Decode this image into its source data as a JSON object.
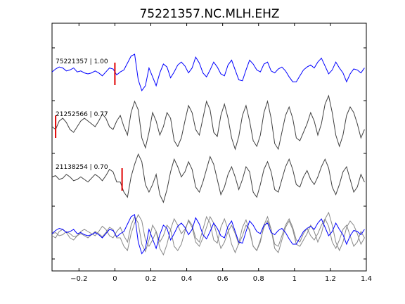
{
  "chart_data": {
    "type": "line",
    "title": "75221357.NC.MLH.EHZ",
    "xlabel": "",
    "ylabel": "",
    "xlim": [
      -0.35,
      1.4
    ],
    "grid": false,
    "xticks": [
      -0.2,
      0,
      0.2,
      0.4,
      0.6,
      0.8,
      1,
      1.2,
      1.4
    ],
    "xtick_labels": [
      "−0.2",
      "0",
      "0.2",
      "0.4",
      "0.6",
      "0.8",
      "1",
      "1.2",
      "1.4"
    ],
    "colors": {
      "blue": "#0000ff",
      "dark": "#404040",
      "gray": "#888888",
      "pick": "#e00000"
    },
    "series": [
      {
        "label": "75221357 | 1.00",
        "color": "blue",
        "pick_time": 0.0,
        "x": [
          -0.35,
          -0.33,
          -0.31,
          -0.29,
          -0.27,
          -0.25,
          -0.23,
          -0.21,
          -0.19,
          -0.17,
          -0.15,
          -0.13,
          -0.11,
          -0.09,
          -0.07,
          -0.05,
          -0.03,
          -0.01,
          0.01,
          0.03,
          0.05,
          0.07,
          0.09,
          0.11,
          0.13,
          0.15,
          0.17,
          0.19,
          0.21,
          0.23,
          0.25,
          0.27,
          0.29,
          0.31,
          0.33,
          0.35,
          0.37,
          0.39,
          0.41,
          0.43,
          0.45,
          0.47,
          0.49,
          0.51,
          0.53,
          0.55,
          0.57,
          0.59,
          0.61,
          0.63,
          0.65,
          0.67,
          0.69,
          0.71,
          0.73,
          0.75,
          0.77,
          0.79,
          0.81,
          0.83,
          0.85,
          0.87,
          0.89,
          0.91,
          0.93,
          0.95,
          0.97,
          0.99,
          1.01,
          1.03,
          1.05,
          1.07,
          1.09,
          1.11,
          1.13,
          1.15,
          1.17,
          1.19,
          1.21,
          1.23,
          1.25,
          1.27,
          1.29,
          1.31,
          1.33,
          1.35,
          1.37,
          1.39
        ],
        "y": [
          0.1,
          0.25,
          0.35,
          0.3,
          0.15,
          0.2,
          0.3,
          0.1,
          0.15,
          0.05,
          0.0,
          0.05,
          0.15,
          0.05,
          -0.1,
          0.1,
          0.3,
          0.25,
          -0.05,
          0.1,
          0.2,
          0.55,
          0.9,
          1.0,
          -0.3,
          -0.85,
          -0.6,
          0.3,
          -0.15,
          -0.6,
          0.05,
          0.5,
          0.35,
          -0.2,
          0.1,
          0.45,
          0.6,
          0.4,
          0.05,
          0.3,
          0.85,
          0.55,
          0.05,
          -0.15,
          0.2,
          0.6,
          0.35,
          0.0,
          -0.1,
          0.45,
          0.7,
          0.2,
          -0.3,
          -0.35,
          0.2,
          0.7,
          0.5,
          0.2,
          0.1,
          0.5,
          0.6,
          0.15,
          0.05,
          0.25,
          0.35,
          0.15,
          -0.15,
          -0.4,
          -0.4,
          -0.1,
          0.2,
          0.35,
          0.45,
          0.3,
          0.6,
          0.8,
          0.4,
          0.0,
          0.2,
          0.6,
          0.3,
          0.05,
          -0.4,
          0.0,
          0.25,
          0.2,
          0.05,
          0.3
        ]
      },
      {
        "label": "21252566 | 0.77",
        "color": "dark",
        "pick_time": -0.33,
        "x": [
          -0.35,
          -0.33,
          -0.31,
          -0.29,
          -0.27,
          -0.25,
          -0.23,
          -0.21,
          -0.19,
          -0.17,
          -0.15,
          -0.13,
          -0.11,
          -0.09,
          -0.07,
          -0.05,
          -0.03,
          -0.01,
          0.01,
          0.03,
          0.05,
          0.07,
          0.09,
          0.11,
          0.13,
          0.15,
          0.17,
          0.19,
          0.21,
          0.23,
          0.25,
          0.27,
          0.29,
          0.31,
          0.33,
          0.35,
          0.37,
          0.39,
          0.41,
          0.43,
          0.45,
          0.47,
          0.49,
          0.51,
          0.53,
          0.55,
          0.57,
          0.59,
          0.61,
          0.63,
          0.65,
          0.67,
          0.69,
          0.71,
          0.73,
          0.75,
          0.77,
          0.79,
          0.81,
          0.83,
          0.85,
          0.87,
          0.89,
          0.91,
          0.93,
          0.95,
          0.97,
          0.99,
          1.01,
          1.03,
          1.05,
          1.07,
          1.09,
          1.11,
          1.13,
          1.15,
          1.17,
          1.19,
          1.21,
          1.23,
          1.25,
          1.27,
          1.29,
          1.31,
          1.33,
          1.35,
          1.37,
          1.39
        ],
        "y": [
          0.0,
          -0.1,
          0.2,
          0.3,
          0.15,
          -0.1,
          -0.2,
          0.0,
          0.2,
          0.3,
          0.2,
          0.1,
          0.0,
          0.2,
          0.45,
          0.3,
          0.0,
          -0.1,
          0.2,
          0.4,
          0.0,
          -0.3,
          0.5,
          0.9,
          0.6,
          -0.4,
          -0.75,
          -0.2,
          0.5,
          0.2,
          -0.3,
          0.0,
          0.5,
          0.3,
          -0.5,
          -0.7,
          -0.4,
          0.2,
          0.75,
          0.5,
          -0.1,
          -0.3,
          0.3,
          0.9,
          0.6,
          -0.2,
          -0.35,
          0.4,
          0.8,
          0.3,
          -0.4,
          -0.8,
          -0.35,
          0.4,
          0.75,
          0.2,
          -0.5,
          -0.7,
          -0.3,
          0.5,
          0.9,
          0.3,
          -0.6,
          -0.8,
          -0.2,
          0.4,
          0.7,
          0.3,
          -0.4,
          -0.5,
          -0.2,
          0.1,
          0.5,
          0.2,
          -0.3,
          0.1,
          0.8,
          1.1,
          0.5,
          -0.3,
          -0.7,
          -0.3,
          0.4,
          0.7,
          0.5,
          0.1,
          -0.4,
          -0.1
        ]
      },
      {
        "label": "21138254 | 0.70",
        "color": "dark",
        "pick_time": 0.04,
        "x": [
          -0.35,
          -0.33,
          -0.31,
          -0.29,
          -0.27,
          -0.25,
          -0.23,
          -0.21,
          -0.19,
          -0.17,
          -0.15,
          -0.13,
          -0.11,
          -0.09,
          -0.07,
          -0.05,
          -0.03,
          -0.01,
          0.01,
          0.03,
          0.05,
          0.07,
          0.09,
          0.11,
          0.13,
          0.15,
          0.17,
          0.19,
          0.21,
          0.23,
          0.25,
          0.27,
          0.29,
          0.31,
          0.33,
          0.35,
          0.37,
          0.39,
          0.41,
          0.43,
          0.45,
          0.47,
          0.49,
          0.51,
          0.53,
          0.55,
          0.57,
          0.59,
          0.61,
          0.63,
          0.65,
          0.67,
          0.69,
          0.71,
          0.73,
          0.75,
          0.77,
          0.79,
          0.81,
          0.83,
          0.85,
          0.87,
          0.89,
          0.91,
          0.93,
          0.95,
          0.97,
          0.99,
          1.01,
          1.03,
          1.05,
          1.07,
          1.09,
          1.11,
          1.13,
          1.15,
          1.17,
          1.19,
          1.21,
          1.23,
          1.25,
          1.27,
          1.29,
          1.31,
          1.33,
          1.35,
          1.37,
          1.39
        ],
        "y": [
          0.1,
          0.15,
          0.0,
          0.05,
          0.2,
          0.1,
          -0.05,
          0.0,
          0.1,
          0.0,
          -0.1,
          0.05,
          0.2,
          0.1,
          -0.05,
          0.15,
          0.4,
          0.3,
          -0.1,
          -0.1,
          -0.5,
          -0.7,
          0.1,
          0.6,
          1.0,
          0.7,
          -0.2,
          -0.5,
          -0.2,
          0.2,
          -0.6,
          -0.9,
          -0.4,
          0.3,
          0.8,
          0.5,
          0.1,
          0.3,
          0.7,
          0.4,
          -0.3,
          -0.5,
          -0.1,
          0.4,
          0.9,
          0.6,
          0.0,
          -0.6,
          -0.3,
          0.2,
          0.5,
          0.1,
          -0.4,
          0.0,
          0.5,
          0.3,
          -0.5,
          -0.7,
          -0.2,
          0.4,
          0.7,
          0.3,
          -0.4,
          -0.5,
          0.0,
          0.5,
          0.8,
          0.4,
          -0.2,
          -0.3,
          0.1,
          0.35,
          0.0,
          -0.2,
          0.1,
          0.5,
          0.8,
          0.45,
          -0.3,
          -0.6,
          -0.2,
          0.3,
          0.5,
          0.0,
          -0.5,
          -0.3,
          0.2,
          -0.1
        ]
      }
    ],
    "overlay": {
      "series": [
        {
          "color": "blue",
          "x": [
            -0.35,
            -0.33,
            -0.31,
            -0.29,
            -0.27,
            -0.25,
            -0.23,
            -0.21,
            -0.19,
            -0.17,
            -0.15,
            -0.13,
            -0.11,
            -0.09,
            -0.07,
            -0.05,
            -0.03,
            -0.01,
            0.01,
            0.03,
            0.05,
            0.07,
            0.09,
            0.11,
            0.13,
            0.15,
            0.17,
            0.19,
            0.21,
            0.23,
            0.25,
            0.27,
            0.29,
            0.31,
            0.33,
            0.35,
            0.37,
            0.39,
            0.41,
            0.43,
            0.45,
            0.47,
            0.49,
            0.51,
            0.53,
            0.55,
            0.57,
            0.59,
            0.61,
            0.63,
            0.65,
            0.67,
            0.69,
            0.71,
            0.73,
            0.75,
            0.77,
            0.79,
            0.81,
            0.83,
            0.85,
            0.87,
            0.89,
            0.91,
            0.93,
            0.95,
            0.97,
            0.99,
            1.01,
            1.03,
            1.05,
            1.07,
            1.09,
            1.11,
            1.13,
            1.15,
            1.17,
            1.19,
            1.21,
            1.23,
            1.25,
            1.27,
            1.29,
            1.31,
            1.33,
            1.35,
            1.37,
            1.39
          ],
          "y": [
            0.1,
            0.25,
            0.35,
            0.3,
            0.15,
            0.2,
            0.3,
            0.1,
            0.15,
            0.05,
            0.0,
            0.05,
            0.15,
            0.05,
            -0.1,
            0.1,
            0.3,
            0.25,
            -0.05,
            0.1,
            0.2,
            0.55,
            0.9,
            1.0,
            -0.3,
            -0.85,
            -0.6,
            0.3,
            -0.15,
            -0.6,
            0.05,
            0.5,
            0.35,
            -0.2,
            0.1,
            0.45,
            0.6,
            0.4,
            0.05,
            0.3,
            0.85,
            0.55,
            0.05,
            -0.15,
            0.2,
            0.6,
            0.35,
            0.0,
            -0.1,
            0.45,
            0.7,
            0.2,
            -0.3,
            -0.35,
            0.2,
            0.7,
            0.5,
            0.2,
            0.1,
            0.5,
            0.6,
            0.15,
            0.05,
            0.25,
            0.35,
            0.15,
            -0.15,
            -0.4,
            -0.4,
            -0.1,
            0.2,
            0.35,
            0.45,
            0.3,
            0.6,
            0.8,
            0.4,
            0.0,
            0.2,
            0.6,
            0.3,
            0.05,
            -0.4,
            0.0,
            0.25,
            0.2,
            0.05,
            0.3
          ]
        },
        {
          "color": "gray",
          "x": [
            -0.35,
            -0.33,
            -0.31,
            -0.29,
            -0.27,
            -0.25,
            -0.23,
            -0.21,
            -0.19,
            -0.17,
            -0.15,
            -0.13,
            -0.11,
            -0.09,
            -0.07,
            -0.05,
            -0.03,
            -0.01,
            0.01,
            0.03,
            0.05,
            0.07,
            0.09,
            0.11,
            0.13,
            0.15,
            0.17,
            0.19,
            0.21,
            0.23,
            0.25,
            0.27,
            0.29,
            0.31,
            0.33,
            0.35,
            0.37,
            0.39,
            0.41,
            0.43,
            0.45,
            0.47,
            0.49,
            0.51,
            0.53,
            0.55,
            0.57,
            0.59,
            0.61,
            0.63,
            0.65,
            0.67,
            0.69,
            0.71,
            0.73,
            0.75,
            0.77,
            0.79,
            0.81,
            0.83,
            0.85,
            0.87,
            0.89,
            0.91,
            0.93,
            0.95,
            0.97,
            0.99,
            1.01,
            1.03,
            1.05,
            1.07,
            1.09,
            1.11,
            1.13,
            1.15,
            1.17,
            1.19,
            1.21,
            1.23,
            1.25,
            1.27,
            1.29,
            1.31,
            1.33,
            1.35,
            1.37,
            1.39
          ],
          "y": [
            0.0,
            -0.1,
            0.2,
            0.3,
            0.15,
            -0.1,
            -0.2,
            0.0,
            0.2,
            0.3,
            0.2,
            0.1,
            0.0,
            0.2,
            0.45,
            0.3,
            0.0,
            -0.1,
            0.2,
            0.4,
            0.0,
            -0.3,
            0.5,
            0.9,
            0.6,
            -0.4,
            -0.75,
            -0.2,
            0.5,
            0.2,
            -0.3,
            0.0,
            0.5,
            0.3,
            -0.5,
            -0.7,
            -0.4,
            0.2,
            0.75,
            0.5,
            -0.1,
            -0.3,
            0.3,
            0.9,
            0.6,
            -0.2,
            -0.35,
            0.4,
            0.8,
            0.3,
            -0.4,
            -0.8,
            -0.35,
            0.4,
            0.75,
            0.2,
            -0.5,
            -0.7,
            -0.3,
            0.5,
            0.9,
            0.3,
            -0.6,
            -0.8,
            -0.2,
            0.4,
            0.7,
            0.3,
            -0.4,
            -0.5,
            -0.2,
            0.1,
            0.5,
            0.2,
            -0.3,
            0.1,
            0.8,
            1.1,
            0.5,
            -0.3,
            -0.7,
            -0.3,
            0.4,
            0.7,
            0.5,
            0.1,
            -0.4,
            -0.1
          ]
        },
        {
          "color": "gray",
          "x": [
            -0.35,
            -0.33,
            -0.31,
            -0.29,
            -0.27,
            -0.25,
            -0.23,
            -0.21,
            -0.19,
            -0.17,
            -0.15,
            -0.13,
            -0.11,
            -0.09,
            -0.07,
            -0.05,
            -0.03,
            -0.01,
            0.01,
            0.03,
            0.05,
            0.07,
            0.09,
            0.11,
            0.13,
            0.15,
            0.17,
            0.19,
            0.21,
            0.23,
            0.25,
            0.27,
            0.29,
            0.31,
            0.33,
            0.35,
            0.37,
            0.39,
            0.41,
            0.43,
            0.45,
            0.47,
            0.49,
            0.51,
            0.53,
            0.55,
            0.57,
            0.59,
            0.61,
            0.63,
            0.65,
            0.67,
            0.69,
            0.71,
            0.73,
            0.75,
            0.77,
            0.79,
            0.81,
            0.83,
            0.85,
            0.87,
            0.89,
            0.91,
            0.93,
            0.95,
            0.97,
            0.99,
            1.01,
            1.03,
            1.05,
            1.07,
            1.09,
            1.11,
            1.13,
            1.15,
            1.17,
            1.19,
            1.21,
            1.23,
            1.25,
            1.27,
            1.29,
            1.31,
            1.33,
            1.35,
            1.37,
            1.39
          ],
          "y": [
            0.1,
            0.15,
            0.0,
            0.05,
            0.2,
            0.1,
            -0.05,
            0.0,
            0.1,
            0.0,
            -0.1,
            0.05,
            0.2,
            0.1,
            -0.05,
            0.15,
            0.4,
            0.3,
            -0.1,
            -0.1,
            -0.5,
            -0.7,
            0.1,
            0.6,
            1.0,
            0.7,
            -0.2,
            -0.5,
            -0.2,
            0.2,
            -0.6,
            -0.9,
            -0.4,
            0.3,
            0.8,
            0.5,
            0.1,
            0.3,
            0.7,
            0.4,
            -0.3,
            -0.5,
            -0.1,
            0.4,
            0.9,
            0.6,
            0.0,
            -0.6,
            -0.3,
            0.2,
            0.5,
            0.1,
            -0.4,
            0.0,
            0.5,
            0.3,
            -0.5,
            -0.7,
            -0.2,
            0.4,
            0.7,
            0.3,
            -0.4,
            -0.5,
            0.0,
            0.5,
            0.8,
            0.4,
            -0.2,
            -0.3,
            0.1,
            0.35,
            0.0,
            -0.2,
            0.1,
            0.5,
            0.8,
            0.45,
            -0.3,
            -0.6,
            -0.2,
            0.3,
            0.5,
            0.0,
            -0.5,
            -0.3,
            0.2,
            -0.1
          ]
        }
      ]
    }
  }
}
